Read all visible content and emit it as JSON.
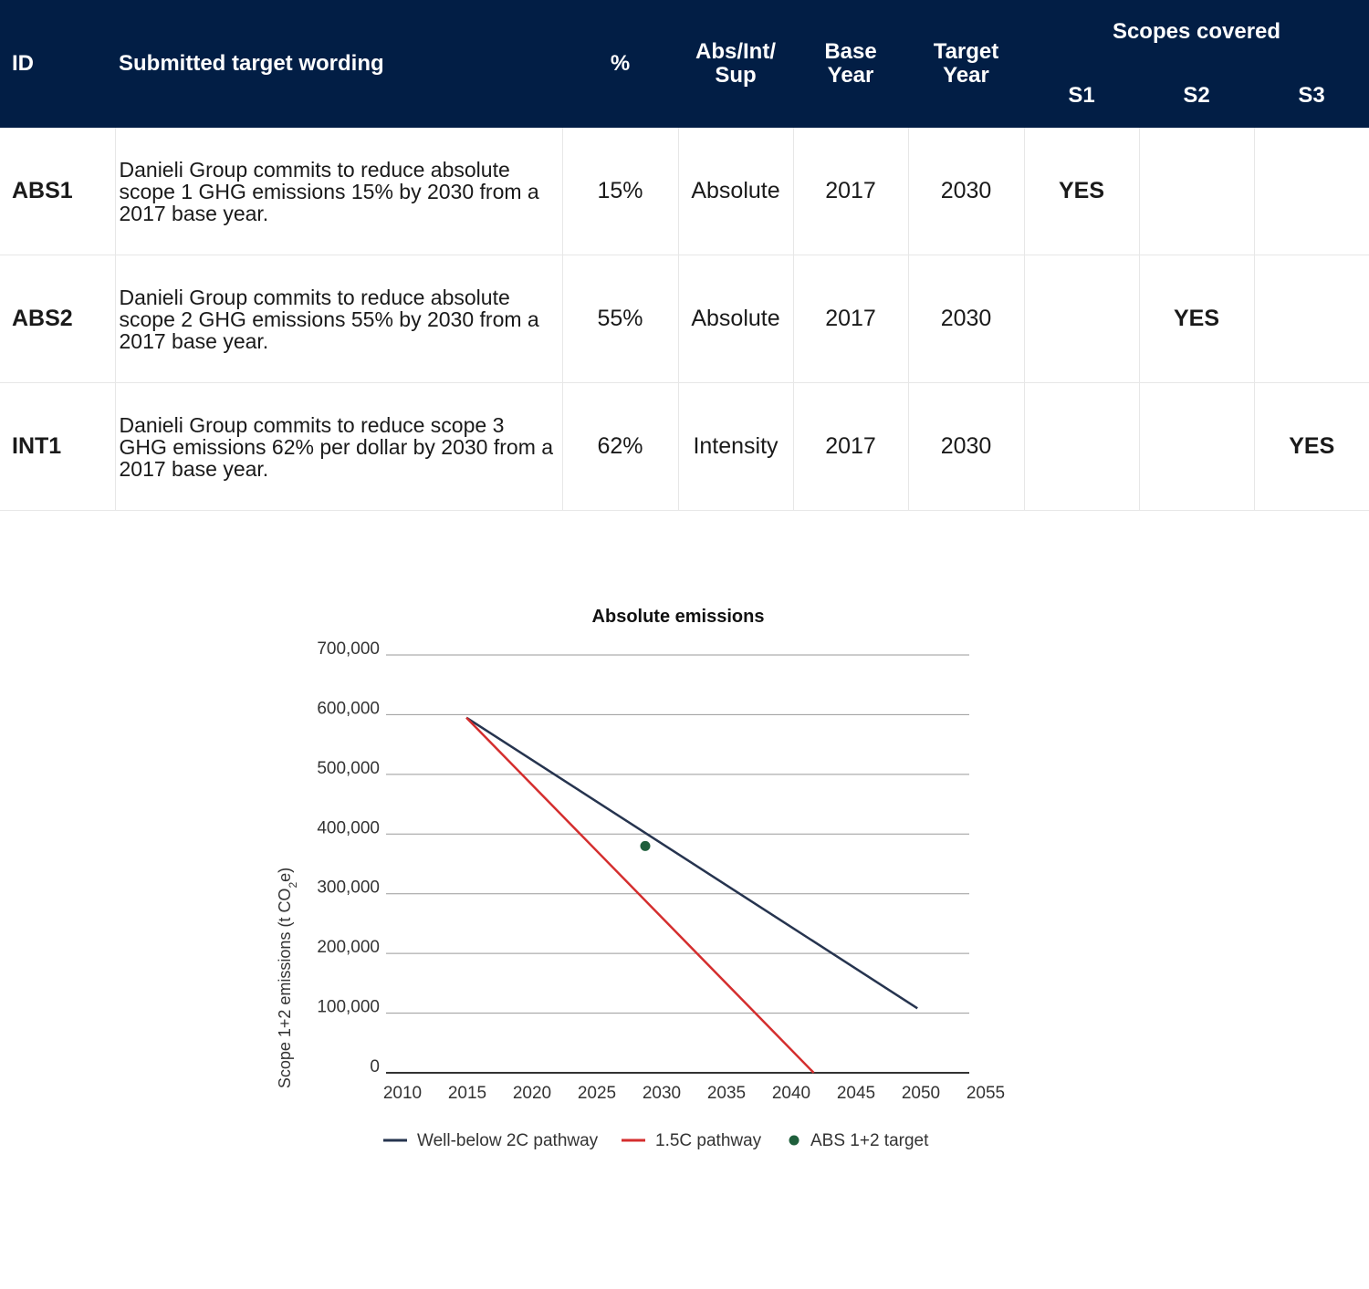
{
  "table": {
    "headers": {
      "id": "ID",
      "wording": "Submitted target wording",
      "percent": "%",
      "type": "Abs/Int/ Sup",
      "base_year": "Base Year",
      "target_year": "Target Year",
      "scopes_covered": "Scopes covered",
      "s1": "S1",
      "s2": "S2",
      "s3": "S3"
    },
    "rows": [
      {
        "id": "ABS1",
        "wording": "Danieli Group commits to reduce absolute scope 1 GHG emissions 15% by 2030 from a 2017 base year.",
        "percent": "15%",
        "type": "Absolute",
        "base_year": "2017",
        "target_year": "2030",
        "s1": "YES",
        "s2": "",
        "s3": ""
      },
      {
        "id": "ABS2",
        "wording": "Danieli Group commits to reduce absolute scope 2 GHG emissions 55% by 2030 from a 2017 base year.",
        "percent": "55%",
        "type": "Absolute",
        "base_year": "2017",
        "target_year": "2030",
        "s1": "",
        "s2": "YES",
        "s3": ""
      },
      {
        "id": "INT1",
        "wording": "Danieli Group commits to reduce scope 3 GHG emissions 62% per dollar by 2030 from a 2017 base year.",
        "percent": "62%",
        "type": "Intensity",
        "base_year": "2017",
        "target_year": "2030",
        "s1": "",
        "s2": "",
        "s3": "YES"
      }
    ],
    "colors": {
      "header_bg": "#021e45",
      "yes": "#6aa84f"
    }
  },
  "chart_data": {
    "type": "line",
    "title": "Absolute emissions",
    "ylabel_main": "Scope 1+2 emissions (t CO",
    "ylabel_sub": "2",
    "ylabel_tail": "e)",
    "xlim": [
      2010,
      2055
    ],
    "ylim": [
      0,
      700000
    ],
    "x_ticks": [
      "2010",
      "2015",
      "2020",
      "2025",
      "2030",
      "2035",
      "2040",
      "2045",
      "2050",
      "2055"
    ],
    "y_ticks": [
      "700,000",
      "600,000",
      "500,000",
      "400,000",
      "300,000",
      "200,000",
      "100,000",
      "0"
    ],
    "grid": true,
    "legend_position": "bottom",
    "series": [
      {
        "name": "Well-below 2C pathway",
        "kind": "line",
        "color": "#26344f",
        "x": [
          2016.2,
          2051
        ],
        "y": [
          595000,
          108000
        ]
      },
      {
        "name": "1.5C pathway",
        "kind": "line",
        "color": "#d42e2e",
        "x": [
          2016.2,
          2043
        ],
        "y": [
          595000,
          0
        ]
      },
      {
        "name": "ABS 1+2 target",
        "kind": "point",
        "color": "#1f5f3c",
        "x": [
          2030
        ],
        "y": [
          380000
        ]
      }
    ]
  }
}
